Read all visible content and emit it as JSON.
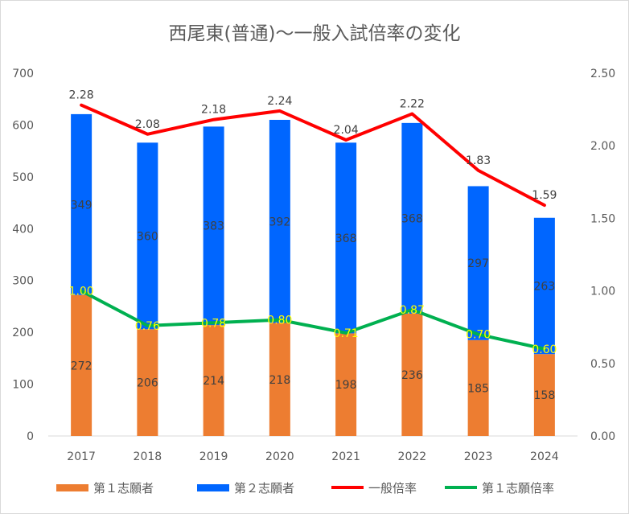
{
  "chart_data": {
    "type": "bar",
    "title": "西尾東(普通)〜一般入試倍率の変化",
    "categories": [
      "2017",
      "2018",
      "2019",
      "2020",
      "2021",
      "2022",
      "2023",
      "2024"
    ],
    "stacked": true,
    "series": [
      {
        "name": "第１志願者",
        "type": "bar",
        "axis": "left",
        "color": "#ed7d31",
        "values": [
          272,
          206,
          214,
          218,
          198,
          236,
          185,
          158
        ]
      },
      {
        "name": "第２志願者",
        "type": "bar",
        "axis": "left",
        "color": "#0066ff",
        "values": [
          349,
          360,
          383,
          392,
          368,
          368,
          297,
          263
        ]
      },
      {
        "name": "一般倍率",
        "type": "line",
        "axis": "right",
        "color": "#ff0000",
        "values": [
          2.28,
          2.08,
          2.18,
          2.24,
          2.04,
          2.22,
          1.83,
          1.59
        ],
        "labels": [
          "2.28",
          "2.08",
          "2.18",
          "2.24",
          "2.04",
          "2.22",
          "1.83",
          "1.59"
        ]
      },
      {
        "name": "第１志願倍率",
        "type": "line",
        "axis": "right",
        "color": "#00b050",
        "values": [
          1.0,
          0.76,
          0.78,
          0.8,
          0.71,
          0.87,
          0.7,
          0.6
        ],
        "labels": [
          "1.00",
          "0.76",
          "0.78",
          "0.80",
          "0.71",
          "0.87",
          "0.70",
          "0.60"
        ]
      }
    ],
    "y_left": {
      "min": 0,
      "max": 700,
      "ticks": [
        "0",
        "100",
        "200",
        "300",
        "400",
        "500",
        "600",
        "700"
      ]
    },
    "y_right": {
      "min": 0,
      "max": 2.5,
      "ticks": [
        "0.00",
        "0.50",
        "1.00",
        "1.50",
        "2.00",
        "2.50"
      ]
    },
    "grid": false,
    "legend_position": "bottom"
  }
}
